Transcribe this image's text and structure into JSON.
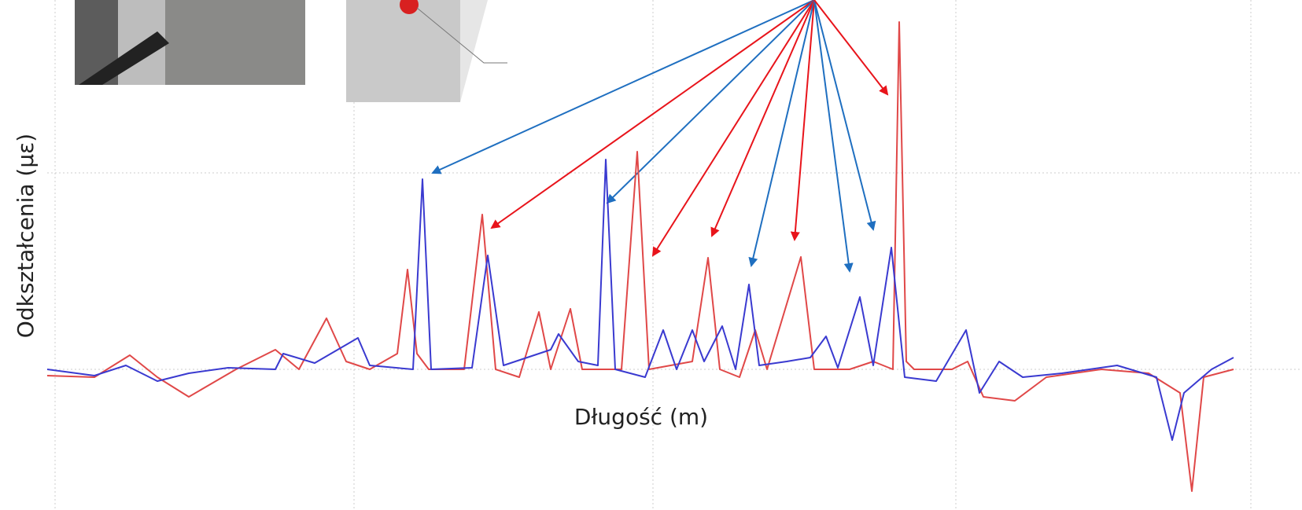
{
  "axes": {
    "y_label": "Odkształcenia (με)",
    "x_label": "Długość (m)"
  }
}
